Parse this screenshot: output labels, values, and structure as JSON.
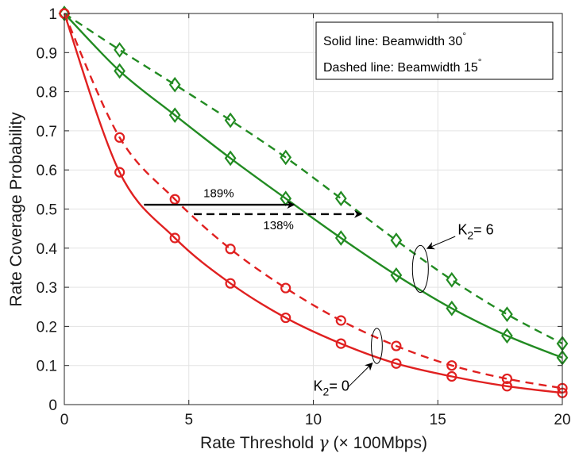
{
  "chart_data": {
    "type": "line",
    "title": "",
    "xlabel": "Rate Threshold",
    "xlabel_symbol": "γ",
    "xlabel_unit": "(× 100Mbps)",
    "ylabel": "Rate Coverage Probability",
    "xlim": [
      0,
      20
    ],
    "ylim": [
      0,
      1
    ],
    "xticks": [
      0,
      5,
      10,
      15,
      20
    ],
    "xtick_labels": [
      "0",
      "5",
      "10",
      "15",
      "20"
    ],
    "yticks": [
      0,
      0.1,
      0.2,
      0.3,
      0.4,
      0.5,
      0.6,
      0.7,
      0.8,
      0.9,
      1
    ],
    "ytick_labels": [
      "0",
      "0.1",
      "0.2",
      "0.3",
      "0.4",
      "0.5",
      "0.6",
      "0.7",
      "0.8",
      "0.9",
      "1"
    ],
    "grid": true,
    "legend": {
      "position": "top-right",
      "entries": [
        "Solid line: Beamwidth 30",
        "Dashed line: Beamwidth 15"
      ],
      "degree_symbol": "°"
    },
    "series": [
      {
        "name": "K2=6, Beamwidth 30 (solid)",
        "color": "#228b22",
        "style": "solid",
        "marker": "diamond",
        "x": [
          0,
          2.22,
          4.44,
          6.67,
          8.89,
          11.11,
          13.33,
          15.56,
          17.78,
          20
        ],
        "y": [
          1.0,
          0.853,
          0.74,
          0.63,
          0.527,
          0.426,
          0.331,
          0.246,
          0.176,
          0.12
        ]
      },
      {
        "name": "K2=6, Beamwidth 15 (dashed)",
        "color": "#228b22",
        "style": "dashed",
        "marker": "diamond",
        "x": [
          0,
          2.22,
          4.44,
          6.67,
          8.89,
          11.11,
          13.33,
          15.56,
          17.78,
          20
        ],
        "y": [
          1.0,
          0.907,
          0.818,
          0.727,
          0.632,
          0.527,
          0.42,
          0.319,
          0.231,
          0.156
        ]
      },
      {
        "name": "K2=0, Beamwidth 30 (solid)",
        "color": "#e02020",
        "style": "solid",
        "marker": "circle",
        "x": [
          0,
          2.22,
          4.44,
          6.67,
          8.89,
          11.11,
          13.33,
          15.56,
          17.78,
          20
        ],
        "y": [
          1.0,
          0.594,
          0.426,
          0.31,
          0.222,
          0.156,
          0.105,
          0.072,
          0.047,
          0.03
        ]
      },
      {
        "name": "K2=0, Beamwidth 15 (dashed)",
        "color": "#e02020",
        "style": "dashed",
        "marker": "circle",
        "x": [
          0,
          2.22,
          4.44,
          6.67,
          8.89,
          11.11,
          13.33,
          15.56,
          17.78,
          20
        ],
        "y": [
          1.0,
          0.683,
          0.525,
          0.398,
          0.298,
          0.215,
          0.15,
          0.1,
          0.066,
          0.042
        ]
      }
    ],
    "annotations": [
      {
        "text": "189%",
        "x": 6.2,
        "y": 0.53
      },
      {
        "text": "138%",
        "x": 8.6,
        "y": 0.448
      },
      {
        "label": "K",
        "subscript": "2",
        "rest": "= 6",
        "x": 15.8,
        "y": 0.435
      },
      {
        "label": "K",
        "subscript": "2",
        "rest": "= 0",
        "x": 10.0,
        "y": 0.035
      }
    ],
    "arrows": [
      {
        "style": "solid",
        "x1": 3.2,
        "x2": 9.2,
        "y": 0.511
      },
      {
        "style": "dashed",
        "x1": 5.2,
        "x2": 11.9,
        "y": 0.487
      }
    ],
    "ellipses": [
      {
        "cx": 14.3,
        "cy": 0.347,
        "rx": 0.32,
        "ry": 0.06
      },
      {
        "cx": 12.55,
        "cy": 0.15,
        "rx": 0.22,
        "ry": 0.045
      }
    ]
  }
}
